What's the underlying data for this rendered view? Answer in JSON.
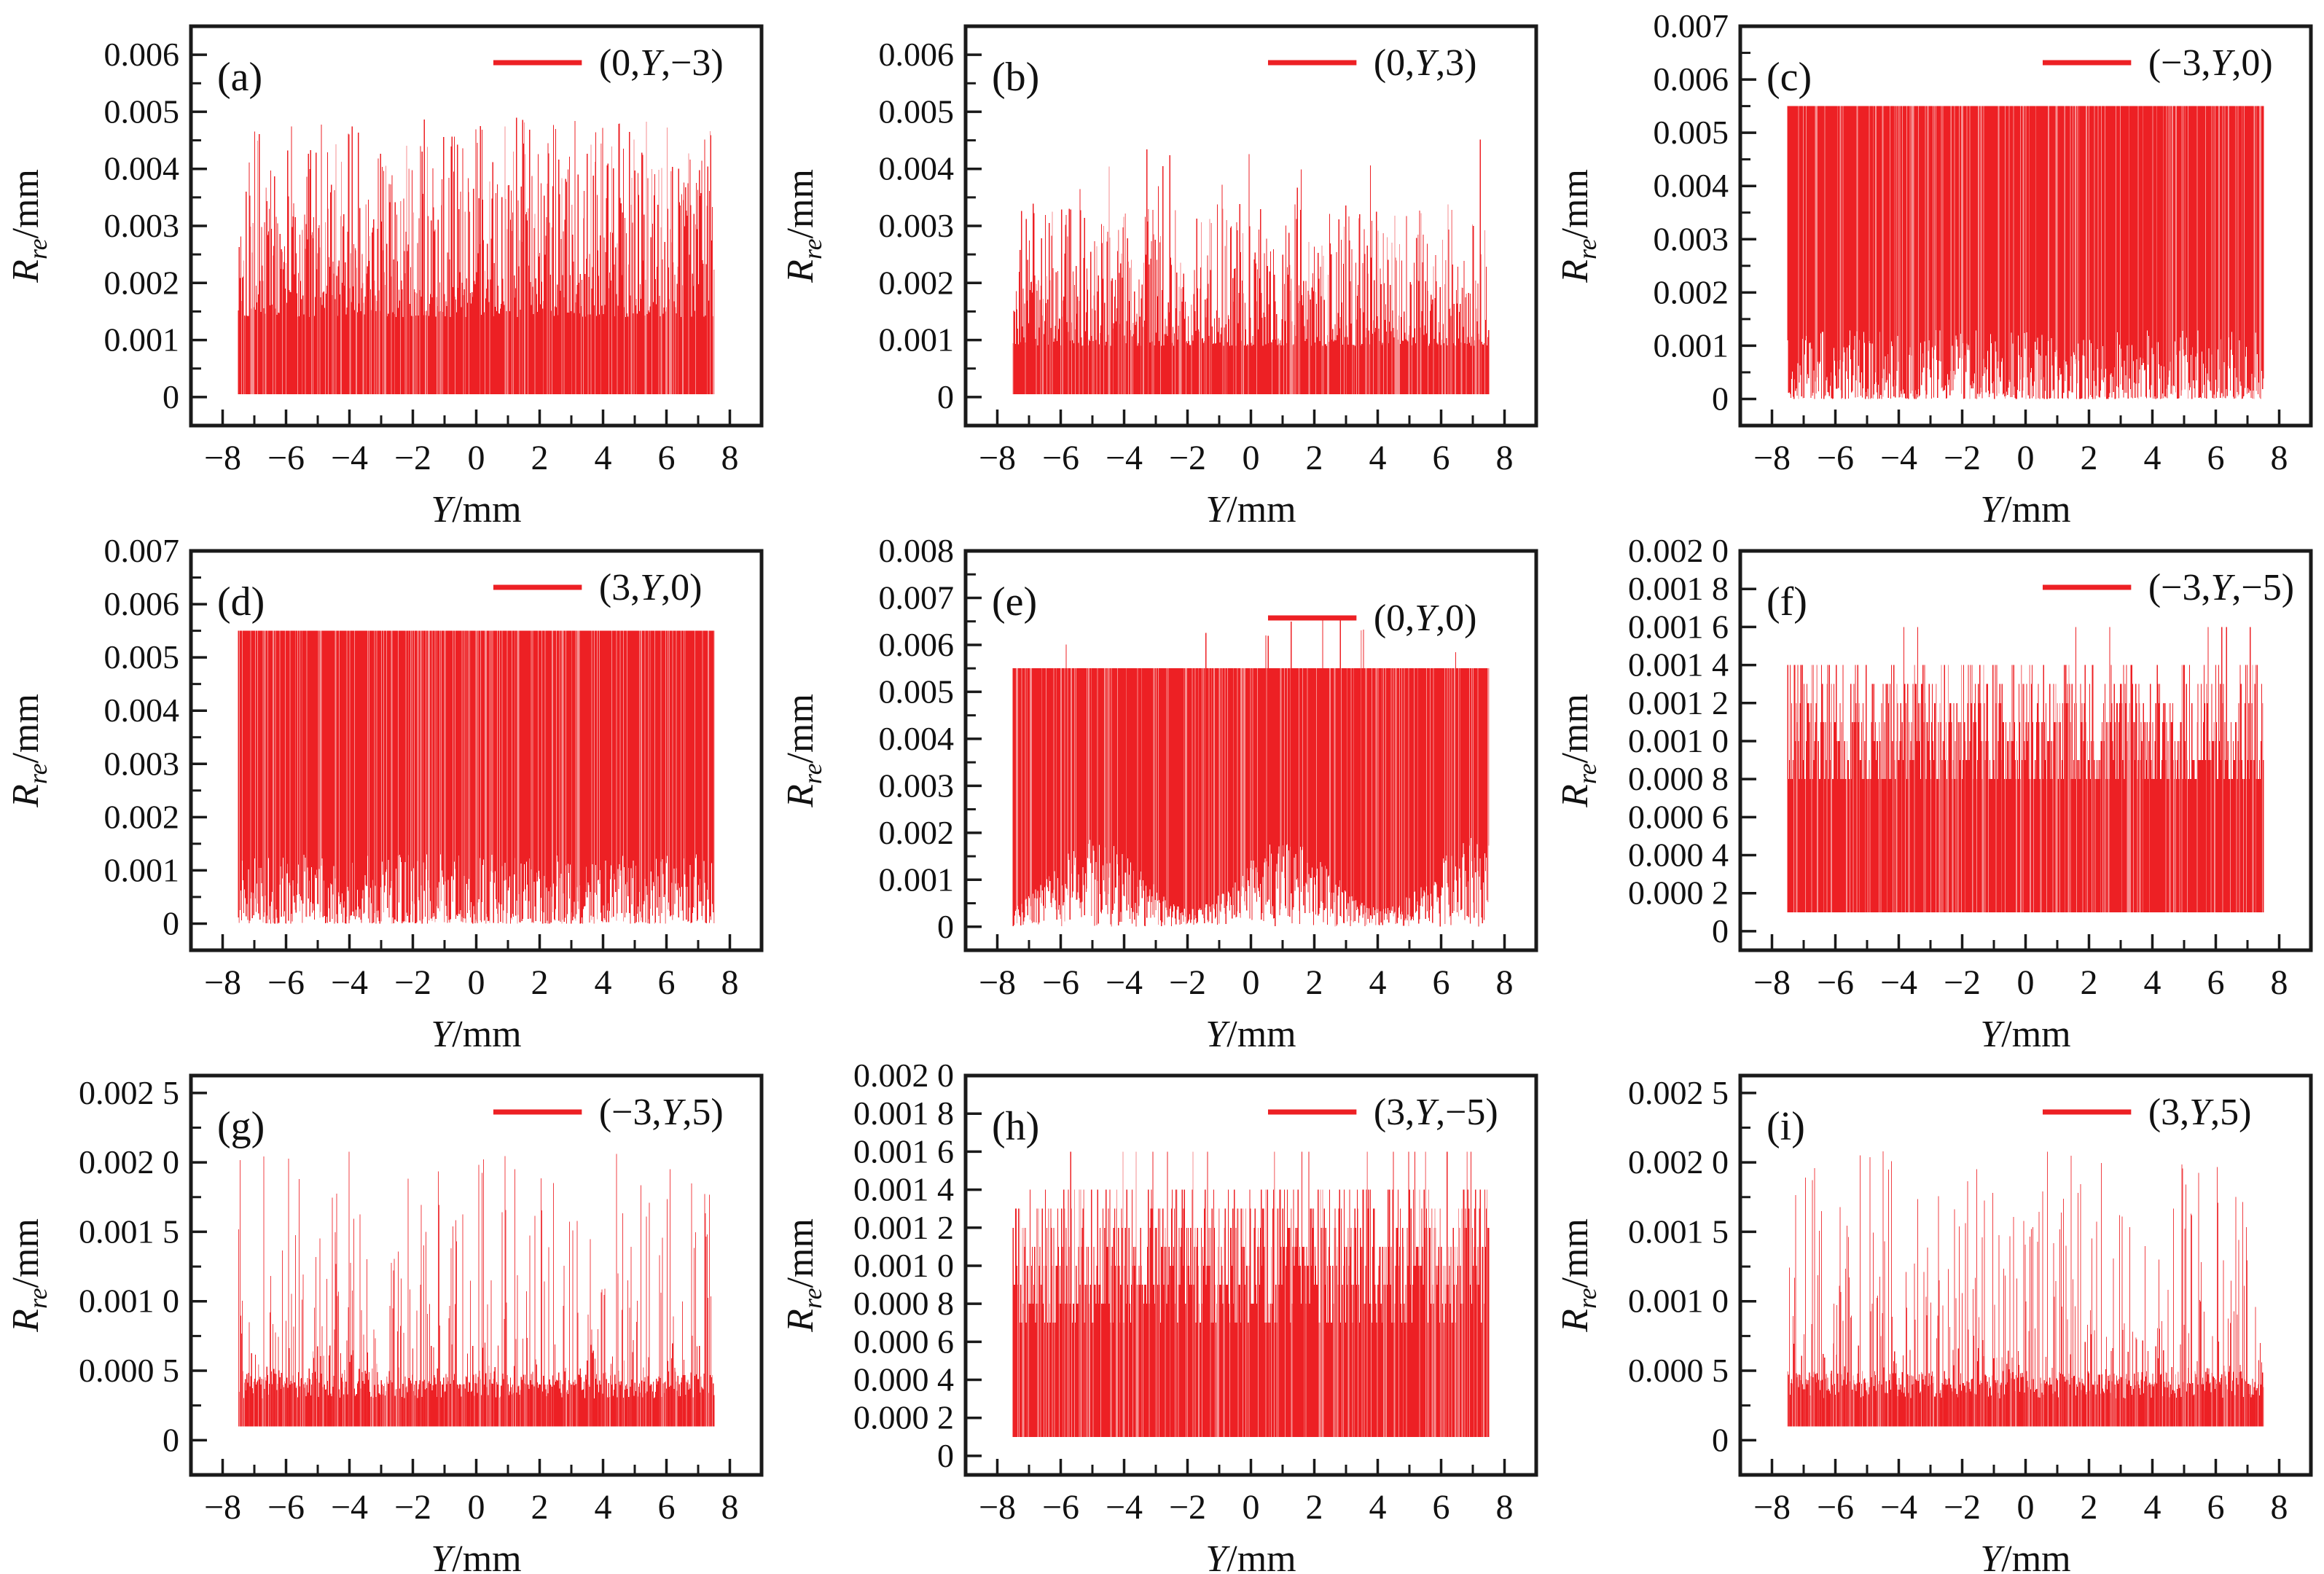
{
  "figure": {
    "grid": [
      3,
      3
    ],
    "background": "#ffffff",
    "colors": {
      "series_red": "#ed2024",
      "axis": "#1a1a1a",
      "text": "#111111"
    }
  },
  "axes_common": {
    "xlabel": "Y/mm",
    "xlabel_var": "Y",
    "xlabel_unit": "/mm",
    "ylabel": "R_re/mm",
    "ylabel_var": "R",
    "ylabel_sub": "re",
    "ylabel_unit": "/mm",
    "x_range": [
      -9,
      9
    ],
    "x_data_range": [
      -7.5,
      7.5
    ],
    "x_tick_values": [
      -8,
      -6,
      -4,
      -2,
      0,
      2,
      4,
      6,
      8
    ],
    "x_tick_labels": [
      "−8",
      "−6",
      "−4",
      "−2",
      "0",
      "2",
      "4",
      "6",
      "8"
    ],
    "x_minor_tick_values": [
      -7,
      -5,
      -3,
      -1,
      1,
      3,
      5,
      7
    ]
  },
  "chart_data": [
    {
      "id": "a",
      "type": "line",
      "label": "(a)",
      "legend": "(0,Y,−3)",
      "y_top": 0.006,
      "y_step": 0.001,
      "top_pad": 0.5,
      "minor_div": 2,
      "legend_dy": 50,
      "y_tick_labels": [
        "0.006",
        "0.005",
        "0.004",
        "0.003",
        "0.002",
        "0.001",
        "0"
      ],
      "observed": {
        "dense_block_top": 0.0026,
        "spike_max": 0.0049,
        "min_height": 0.0014
      },
      "seed": 101,
      "envelope": {
        "kind": "spike",
        "tmin": 0.0014,
        "tmax": 0.0049,
        "pw": 1.7
      }
    },
    {
      "id": "b",
      "type": "line",
      "label": "(b)",
      "legend": "(0,Y,3)",
      "y_top": 0.006,
      "y_step": 0.001,
      "top_pad": 0.5,
      "minor_div": 2,
      "legend_dy": 50,
      "y_tick_labels": [
        "0.006",
        "0.005",
        "0.004",
        "0.003",
        "0.002",
        "0.001",
        "0"
      ],
      "observed": {
        "dense_block_top": 0.0015,
        "spike_max": 0.0046,
        "min_height": 0.0009
      },
      "seed": 202,
      "envelope": {
        "kind": "spike",
        "tmin": 0.0009,
        "tmax": 0.0034,
        "pw": 2.0,
        "extra_p": 0.02,
        "extra_min": 0.0034,
        "extra_max": 0.0046
      }
    },
    {
      "id": "c",
      "type": "line",
      "label": "(c)",
      "legend": "(−3,Y,0)",
      "y_top": 0.007,
      "y_step": 0.001,
      "top_pad": 0,
      "minor_div": 2,
      "legend_dy": 50,
      "y_tick_labels": [
        "0.007",
        "0.006",
        "0.005",
        "0.004",
        "0.003",
        "0.002",
        "0.001",
        "0"
      ],
      "observed": {
        "band_top": 0.0055,
        "band_bottom_min": 0.0,
        "band_bottom_max": 0.0013
      },
      "seed": 303,
      "envelope": {
        "kind": "band",
        "band_top": 0.0055,
        "bmax": 0.0013,
        "bpw": 2.3
      }
    },
    {
      "id": "d",
      "type": "line",
      "label": "(d)",
      "legend": "(3,Y,0)",
      "y_top": 0.007,
      "y_step": 0.001,
      "top_pad": 0,
      "minor_div": 2,
      "legend_dy": 50,
      "y_tick_labels": [
        "0.007",
        "0.006",
        "0.005",
        "0.004",
        "0.003",
        "0.002",
        "0.001",
        "0"
      ],
      "observed": {
        "band_top": 0.0055,
        "band_bottom_min": 0.0,
        "band_bottom_max": 0.0013
      },
      "seed": 404,
      "envelope": {
        "kind": "band",
        "band_top": 0.0055,
        "bmax": 0.0013,
        "bpw": 2.3
      }
    },
    {
      "id": "e",
      "type": "line",
      "label": "(e)",
      "legend": "(0,Y,0)",
      "y_top": 0.008,
      "y_step": 0.001,
      "top_pad": 0,
      "minor_div": 2,
      "legend_dy": 92,
      "y_tick_labels": [
        "0.008",
        "0.007",
        "0.006",
        "0.005",
        "0.004",
        "0.003",
        "0.002",
        "0.001",
        "0"
      ],
      "observed": {
        "band_top": 0.0055,
        "spike_max": 0.0066,
        "band_bottom_max": 0.002
      },
      "seed": 505,
      "envelope": {
        "kind": "band_hump",
        "band_top": 0.0055,
        "b0": 0.0004,
        "b1": 0.0015,
        "hf": 1.05,
        "hp": 0.4,
        "bpw": 1.1,
        "extra_p": 0.018,
        "extra_h": 0.0011
      }
    },
    {
      "id": "f",
      "type": "line",
      "label": "(f)",
      "legend": "(−3,Y,−5)",
      "y_top": 0.002,
      "y_step": 0.0002,
      "top_pad": 0,
      "minor_div": 1,
      "legend_dy": 50,
      "y_tick_labels": [
        "0.002 0",
        "0.001 8",
        "0.001 6",
        "0.001 4",
        "0.001 2",
        "0.001 0",
        "0.000 8",
        "0.000 6",
        "0.000 4",
        "0.000 2",
        "0"
      ],
      "observed": {
        "solid_block": [
          0.0001,
          0.0008
        ],
        "dense_spike_top": 0.0014,
        "rare_spike_max": 0.0016
      },
      "seed": 606,
      "envelope": {
        "kind": "block_spike",
        "b": 0.0001,
        "t0": 0.0008,
        "lvl": 0.0001,
        "levels": 7,
        "pw": 1.25,
        "extra_p": 0.012,
        "extra": 0.0016
      }
    },
    {
      "id": "g",
      "type": "line",
      "label": "(g)",
      "legend": "(−3,Y,5)",
      "y_top": 0.0025,
      "y_step": 0.0005,
      "top_pad": 0.25,
      "minor_div": 2,
      "legend_dy": 50,
      "y_tick_labels": [
        "0.002 5",
        "0.002 0",
        "0.001 5",
        "0.001 0",
        "0.000 5",
        "0"
      ],
      "observed": {
        "solid_block": [
          0.0001,
          0.0004
        ],
        "spike_max": 0.0021
      },
      "seed": 707,
      "envelope": {
        "kind": "base_spike",
        "b": 0.0001,
        "t_base": 0.0004,
        "t_max": 0.0021,
        "p_tall": 0.5,
        "pw": 2.6
      }
    },
    {
      "id": "h",
      "type": "line",
      "label": "(h)",
      "legend": "(3,Y,−5)",
      "y_top": 0.002,
      "y_step": 0.0002,
      "top_pad": 0,
      "minor_div": 1,
      "legend_dy": 50,
      "y_tick_labels": [
        "0.002 0",
        "0.001 8",
        "0.001 6",
        "0.001 4",
        "0.001 2",
        "0.001 0",
        "0.000 8",
        "0.000 6",
        "0.000 4",
        "0.000 2",
        "0"
      ],
      "observed": {
        "solid_block": [
          0.0001,
          0.0007
        ],
        "dense_spike_top": 0.0014,
        "rare_spike_max": 0.0016
      },
      "seed": 808,
      "envelope": {
        "kind": "block_spike",
        "b": 0.0001,
        "t0": 0.0007,
        "lvl": 0.0001,
        "levels": 8,
        "pw": 0.95,
        "extra_p": 0.02,
        "extra": 0.0016
      }
    },
    {
      "id": "i",
      "type": "line",
      "label": "(i)",
      "legend": "(3,Y,5)",
      "y_top": 0.0025,
      "y_step": 0.0005,
      "top_pad": 0.25,
      "minor_div": 2,
      "legend_dy": 50,
      "y_tick_labels": [
        "0.002 5",
        "0.002 0",
        "0.001 5",
        "0.001 0",
        "0.000 5",
        "0"
      ],
      "observed": {
        "solid_block": [
          0.0001,
          0.0004
        ],
        "spike_max": 0.0021
      },
      "seed": 909,
      "envelope": {
        "kind": "base_spike",
        "b": 0.0001,
        "t_base": 0.0004,
        "t_max": 0.0021,
        "p_tall": 0.5,
        "pw": 2.6
      }
    }
  ]
}
